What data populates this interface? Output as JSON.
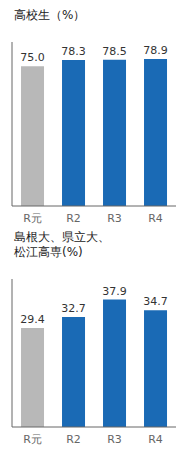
{
  "chart_data": [
    {
      "type": "bar",
      "title": "高校生（%）",
      "categories": [
        "R元",
        "R2",
        "R3",
        "R4"
      ],
      "values": [
        75.0,
        78.3,
        78.5,
        78.9
      ],
      "value_labels": [
        "75.0",
        "78.3",
        "78.5",
        "78.9"
      ],
      "colors": [
        "#b8b8b8",
        "#1a6ab5",
        "#1a6ab5",
        "#1a6ab5"
      ],
      "ylim": [
        0,
        88
      ],
      "data_labels": true,
      "tick_labels": "x",
      "grid": false
    },
    {
      "type": "bar",
      "title": "島根大、県立大、\n松江高専(%)",
      "categories": [
        "R元",
        "R2",
        "R3",
        "R4"
      ],
      "values": [
        29.4,
        32.7,
        37.9,
        34.7
      ],
      "colors": [
        "#b8b8b8",
        "#1a6ab5",
        "#1a6ab5",
        "#1a6ab5"
      ],
      "ylim": [
        0,
        44
      ],
      "data_labels": true,
      "tick_labels": "x",
      "grid": false
    }
  ]
}
